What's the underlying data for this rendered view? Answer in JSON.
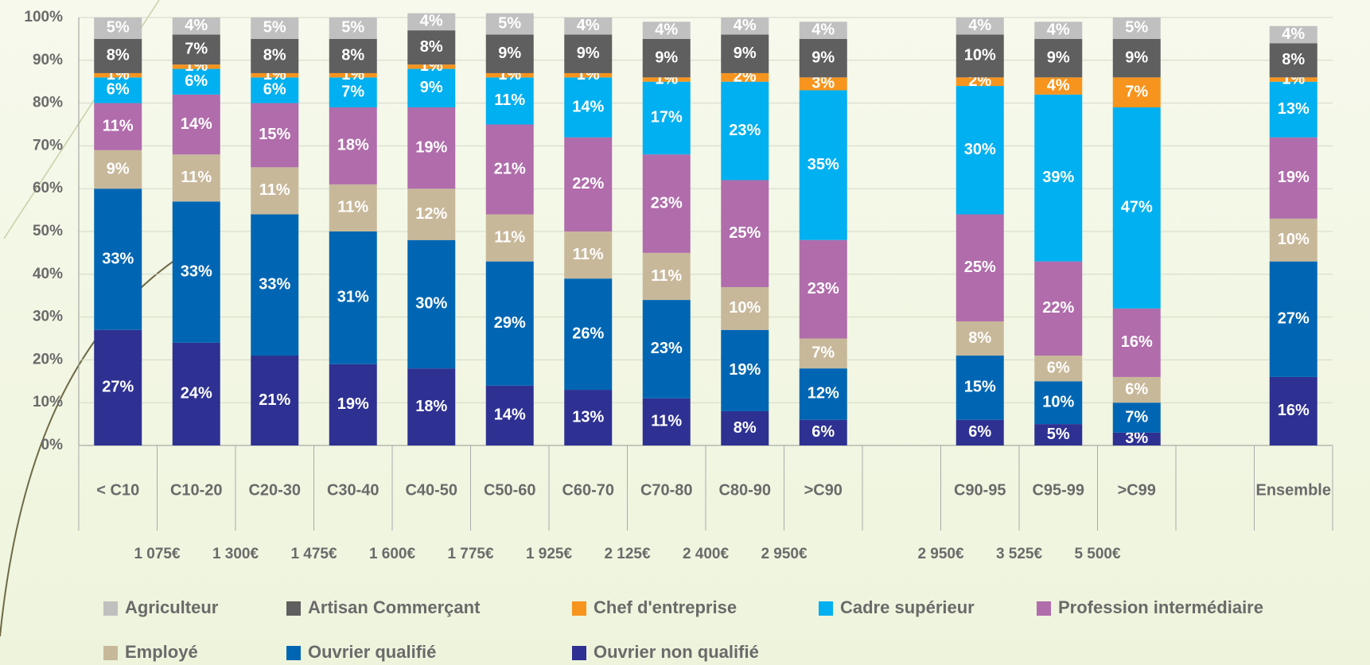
{
  "chart_data": {
    "type": "stacked_bar",
    "categories": [
      "< C10",
      "C10-20",
      "C20-30",
      "C30-40",
      "C40-50",
      "C50-60",
      "C60-70",
      "C70-80",
      "C80-90",
      ">C90",
      null,
      "C90-95",
      "C95-99",
      ">C99",
      null,
      "Ensemble"
    ],
    "thresholds": [
      null,
      "1 075€",
      "1 300€",
      "1 475€",
      "1 600€",
      "1 775€",
      "1 925€",
      "2 125€",
      "2 400€",
      "2 950€",
      null,
      "2 950€",
      "3 525€",
      "5 500€",
      null,
      null
    ],
    "ylim": [
      0,
      100
    ],
    "yticks": [
      {
        "value": 0,
        "label": "0%"
      },
      {
        "value": 10,
        "label": "10%"
      },
      {
        "value": 20,
        "label": "20%"
      },
      {
        "value": 30,
        "label": "30%"
      },
      {
        "value": 40,
        "label": "40%"
      },
      {
        "value": 50,
        "label": "50%"
      },
      {
        "value": 60,
        "label": "60%"
      },
      {
        "value": 70,
        "label": "70%"
      },
      {
        "value": 80,
        "label": "80%"
      },
      {
        "value": 90,
        "label": "90%"
      },
      {
        "value": 100,
        "label": "100%"
      }
    ],
    "grid": true,
    "legend": "bottom",
    "series": [
      {
        "name": "Ouvrier non qualifié",
        "color": "#2e3192",
        "values": [
          27,
          24,
          21,
          19,
          18,
          14,
          13,
          11,
          8,
          6,
          null,
          6,
          5,
          3,
          null,
          16
        ],
        "value_labels": [
          "27%",
          "24%",
          "21%",
          "19%",
          "18%",
          "14%",
          "13%",
          "11%",
          "8%",
          "6%",
          null,
          "6%",
          "5%",
          "3%",
          null,
          "16%"
        ]
      },
      {
        "name": "Ouvrier qualifié",
        "color": "#0066b3",
        "values": [
          33,
          33,
          33,
          31,
          30,
          29,
          26,
          23,
          19,
          12,
          null,
          15,
          10,
          7,
          null,
          27
        ],
        "value_labels": [
          "33%",
          "33%",
          "33%",
          "31%",
          "30%",
          "29%",
          "26%",
          "23%",
          "19%",
          "12%",
          null,
          "15%",
          "10%",
          "7%",
          null,
          "27%"
        ]
      },
      {
        "name": "Employé",
        "color": "#c8b89a",
        "values": [
          9,
          11,
          11,
          11,
          12,
          11,
          11,
          11,
          10,
          7,
          null,
          8,
          6,
          6,
          null,
          10
        ],
        "value_labels": [
          "9%",
          "11%",
          "11%",
          "11%",
          "12%",
          "11%",
          "11%",
          "11%",
          "10%",
          "7%",
          null,
          "8%",
          "6%",
          "6%",
          null,
          "10%"
        ]
      },
      {
        "name": "Profession intermédiaire",
        "color": "#b06cab",
        "values": [
          11,
          14,
          15,
          18,
          19,
          21,
          22,
          23,
          25,
          23,
          null,
          25,
          22,
          16,
          null,
          19
        ],
        "value_labels": [
          "11%",
          "14%",
          "15%",
          "18%",
          "19%",
          "21%",
          "22%",
          "23%",
          "25%",
          "23%",
          null,
          "25%",
          "22%",
          "16%",
          null,
          "19%"
        ]
      },
      {
        "name": "Cadre supérieur",
        "color": "#00b0f0",
        "values": [
          6,
          6,
          6,
          7,
          9,
          11,
          14,
          17,
          23,
          35,
          null,
          30,
          39,
          47,
          null,
          13
        ],
        "value_labels": [
          "6%",
          "6%",
          "6%",
          "7%",
          "9%",
          "11%",
          "14%",
          "17%",
          "23%",
          "35%",
          null,
          "30%",
          "39%",
          "47%",
          null,
          "13%"
        ]
      },
      {
        "name": "Chef d'entreprise",
        "color": "#f7941d",
        "values": [
          1,
          1,
          1,
          1,
          1,
          1,
          1,
          1,
          2,
          3,
          null,
          2,
          4,
          7,
          null,
          1
        ],
        "value_labels": [
          "1%",
          "1%",
          "1%",
          "1%",
          "1%",
          "1%",
          "1%",
          "1%",
          "2%",
          "3%",
          null,
          "2%",
          "4%",
          "7%",
          null,
          "1%"
        ]
      },
      {
        "name": "Artisan Commerçant",
        "color": "#5f5f5f",
        "values": [
          8,
          7,
          8,
          8,
          8,
          9,
          9,
          9,
          9,
          9,
          null,
          10,
          9,
          9,
          null,
          8
        ],
        "value_labels": [
          "8%",
          "7%",
          "8%",
          "8%",
          "8%",
          "9%",
          "9%",
          "9%",
          "9%",
          "9%",
          null,
          "10%",
          "9%",
          "9%",
          null,
          "8%"
        ]
      },
      {
        "name": "Agriculteur",
        "color": "#c0c0c0",
        "values": [
          5,
          4,
          5,
          5,
          4,
          5,
          4,
          4,
          4,
          4,
          null,
          4,
          4,
          5,
          null,
          4
        ],
        "value_labels": [
          "5%",
          "4%",
          "5%",
          "5%",
          "4%",
          "5%",
          "4%",
          "4%",
          "4%",
          "4%",
          null,
          "4%",
          "4%",
          "5%",
          null,
          "4%"
        ]
      }
    ]
  }
}
